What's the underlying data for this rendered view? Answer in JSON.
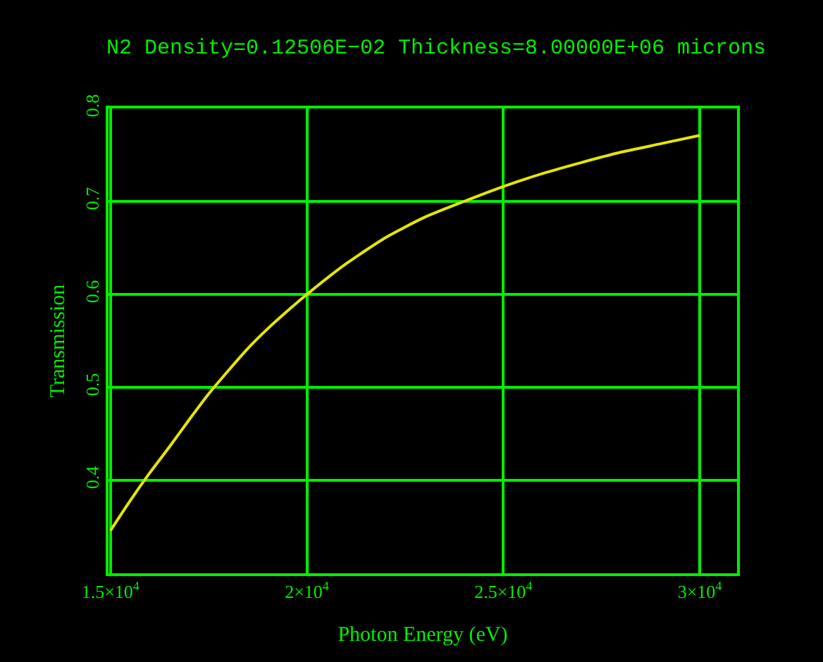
{
  "chart_data": {
    "type": "line",
    "title": "N2 Density=0.12506E−02 Thickness=8.00000E+06 microns",
    "xlabel": "Photon Energy (eV)",
    "ylabel": "Transmission",
    "x": [
      15000,
      15500,
      16000,
      16500,
      17000,
      17500,
      18000,
      18500,
      19000,
      19500,
      20000,
      21000,
      22000,
      23000,
      24000,
      25000,
      26000,
      27000,
      28000,
      29000,
      30000
    ],
    "series": [
      {
        "color": "#e6e600",
        "values": [
          0.346,
          0.378,
          0.408,
          0.436,
          0.465,
          0.493,
          0.518,
          0.542,
          0.563,
          0.582,
          0.6,
          0.633,
          0.661,
          0.683,
          0.7,
          0.716,
          0.73,
          0.742,
          0.753,
          0.762,
          0.771
        ]
      }
    ],
    "xlim": [
      14950,
      30950
    ],
    "ylim": [
      0.3,
      0.8
    ],
    "xticks": [
      {
        "value": 15000,
        "label": "1.5×10$^{4}$"
      },
      {
        "value": 20000,
        "label": "2×10$^{4}$"
      },
      {
        "value": 25000,
        "label": "2.5×10$^{4}$"
      },
      {
        "value": 30000,
        "label": "3×10$^{4}$"
      }
    ],
    "yticks": [
      0.4,
      0.5,
      0.6,
      0.7,
      0.8
    ],
    "grid": true,
    "marker": "none",
    "line_style": "solid",
    "legend": false
  }
}
